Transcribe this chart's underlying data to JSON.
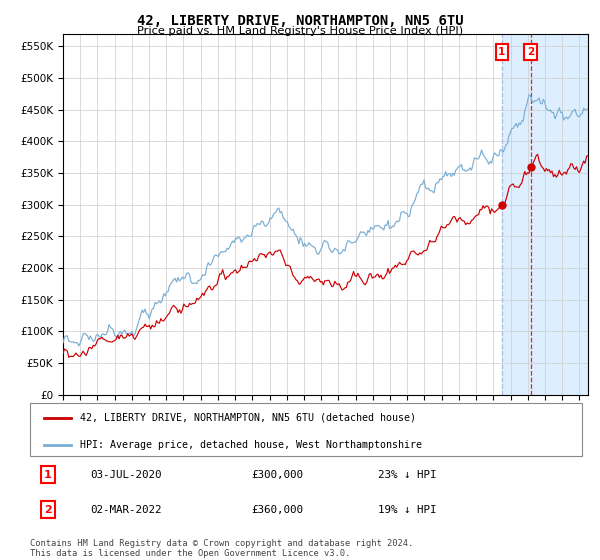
{
  "title": "42, LIBERTY DRIVE, NORTHAMPTON, NN5 6TU",
  "subtitle": "Price paid vs. HM Land Registry's House Price Index (HPI)",
  "legend1": "42, LIBERTY DRIVE, NORTHAMPTON, NN5 6TU (detached house)",
  "legend2": "HPI: Average price, detached house, West Northamptonshire",
  "annotation1_date": "03-JUL-2020",
  "annotation1_price": "£300,000",
  "annotation1_hpi": "23% ↓ HPI",
  "annotation2_date": "02-MAR-2022",
  "annotation2_price": "£360,000",
  "annotation2_hpi": "19% ↓ HPI",
  "footer": "Contains HM Land Registry data © Crown copyright and database right 2024.\nThis data is licensed under the Open Government Licence v3.0.",
  "red_color": "#cc0000",
  "blue_color": "#7aaed4",
  "background_color": "#ffffff",
  "grid_color": "#cccccc",
  "highlight_color": "#ddeeff",
  "ylim": [
    0,
    570000
  ],
  "yticks": [
    0,
    50000,
    100000,
    150000,
    200000,
    250000,
    300000,
    350000,
    400000,
    450000,
    500000,
    550000
  ],
  "xmin": 1995,
  "xmax": 2025.5
}
